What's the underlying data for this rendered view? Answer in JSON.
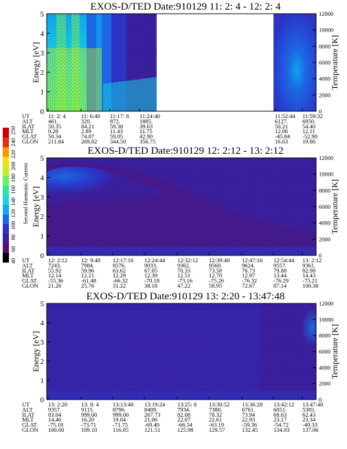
{
  "colorbar": {
    "label": "Second Harmonic Current",
    "ticks": [
      "40",
      "60",
      "80",
      "100",
      "120",
      "140",
      "160",
      "180",
      "200",
      "220",
      "240",
      "250"
    ],
    "colors": [
      "#000000",
      "#5a0f6e",
      "#3a1f9c",
      "#2a35c8",
      "#1a6ae6",
      "#10a8f0",
      "#16d6e0",
      "#28e8a0",
      "#6ef05a",
      "#bff020",
      "#f5e000",
      "#f59a00",
      "#e83010",
      "#cc0000"
    ]
  },
  "chart_data": [
    {
      "type": "heatmap",
      "title": "EXOS-D/TED   Date:910129   11: 2: 4 - 12: 2: 4",
      "ylabel": "Energy [eV]",
      "y2label": "Temperature [K]",
      "ylim": [
        0,
        5
      ],
      "y2lim": [
        0,
        12000
      ],
      "yticks": [
        "0",
        "1",
        "2",
        "3",
        "4",
        "5"
      ],
      "y2ticks": [
        "0",
        "2000",
        "4000",
        "6000",
        "8000",
        "10000",
        "12000"
      ],
      "data_gap": {
        "from": "11:24:40",
        "to": "11:52:44"
      },
      "intensity_note": "High intensity (yellow-green) at all energies near 11:6-11:18, blue-cyan elsewhere",
      "ephemeris": {
        "row_labels": [
          "UT",
          "ALT",
          "ILAT",
          "MLT",
          "GLAT",
          "GLON"
        ],
        "columns": [
          [
            "11: 2: 4",
            "461.",
            "50.35",
            "0.28",
            "50.34",
            "211.84"
          ],
          [
            "11: 6:40",
            "320.",
            "84.21",
            "2.89",
            "74.87",
            "269.82"
          ],
          [
            "11:17: 8",
            "872.",
            "59.38",
            "11.43",
            "59.05",
            "344.50"
          ],
          [
            "11:24:40",
            "1885.",
            "39.63",
            "11.75",
            "42.90",
            "356.75"
          ],
          [
            "11:52:44",
            "6127.",
            "50.21",
            "12.06",
            "-45.84",
            "16.63"
          ],
          [
            "11:59:32",
            "6950.",
            "54.40",
            "12.11",
            "-52.90",
            "19.86"
          ]
        ]
      }
    },
    {
      "type": "heatmap",
      "title": "EXOS-D/TED   Date:910129   12: 2:12 - 13: 2:12",
      "ylabel": "Energy [eV]",
      "y2label": "Temperature [K]",
      "ylim": [
        0,
        5
      ],
      "y2lim": [
        0,
        12000
      ],
      "yticks": [
        "0",
        "1",
        "2",
        "3",
        "4",
        "5"
      ],
      "y2ticks": [
        "0",
        "2000",
        "4000",
        "6000",
        "8000",
        "10000",
        "12000"
      ],
      "intensity_note": "Mostly low intensity (purple); blue enhancement at 3-4.5 eV early in the interval",
      "ephemeris": {
        "row_labels": [
          "UT",
          "ALT",
          "ILAT",
          "MLT",
          "GLAT",
          "GLON"
        ],
        "columns": [
          [
            "12: 2:12",
            "7243.",
            "55.92",
            "12.14",
            "-55.36",
            "21.26"
          ],
          [
            "12: 9:48",
            "7984.",
            "59.96",
            "12.21",
            "-61.48",
            "25.76"
          ],
          [
            "12:17:16",
            "8576.",
            "63.62",
            "12.29",
            "-66.32",
            "31.22"
          ],
          [
            "12:24:44",
            "9033.",
            "67.05",
            "12.39",
            "-70.18",
            "38.18"
          ],
          [
            "12:32:12",
            "9362.",
            "70.33",
            "12.51",
            "-73.16",
            "47.22"
          ],
          [
            "12:39:48",
            "9560.",
            "73.58",
            "12.70",
            "-75.26",
            "58.95"
          ],
          [
            "12:47:16",
            "9624.",
            "76.73",
            "12.97",
            "-76.32",
            "72.67"
          ],
          [
            "12:54:44",
            "9557.",
            "79.88",
            "13.44",
            "-76.29",
            "87.14"
          ],
          [
            "13: 2:12",
            "9361.",
            "82.98",
            "14.43",
            "-75.21",
            "100.38"
          ]
        ]
      }
    },
    {
      "type": "heatmap",
      "title": "EXOS-D/TED   Date:910129   13: 2:20 - 13:47:48",
      "ylabel": "Energy [eV]",
      "y2label": "Temperature [K]",
      "ylim": [
        0,
        5
      ],
      "y2lim": [
        0,
        12000
      ],
      "yticks": [
        "0",
        "1",
        "2",
        "3",
        "4",
        "5"
      ],
      "y2ticks": [
        "0",
        "2000",
        "4000",
        "6000",
        "8000",
        "10000",
        "12000"
      ],
      "intensity_note": "Low intensity (purple) throughout; faint blue near 13:42-13:47 at 3.5-4.8 eV",
      "ephemeris": {
        "row_labels": [
          "UT",
          "ALT",
          "ILAT",
          "MLT",
          "GLAT",
          "GLON"
        ],
        "columns": [
          [
            "13: 2:20",
            "9357.",
            "83.04",
            "14.46",
            "-75.18",
            "100.60"
          ],
          [
            "13: 8: 4",
            "9115.",
            "999.00",
            "16.20",
            "-73.71",
            "109.10"
          ],
          [
            "13:13:48",
            "8796.",
            "999.00",
            "19.04",
            "-71.75",
            "116.05"
          ],
          [
            "13:19:24",
            "8409.",
            "267.73",
            "21.06",
            "-69.40",
            "121.51"
          ],
          [
            "13:25: 8",
            "7934.",
            "82.08",
            "22.07",
            "-66.54",
            "125.98"
          ],
          [
            "13:30:52",
            "7380.",
            "78.32",
            "22.61",
            "-63.19",
            "129.57"
          ],
          [
            "13:36:28",
            "6761.",
            "73.94",
            "22.93",
            "-59.36",
            "132.45"
          ],
          [
            "13:42:12",
            "6051.",
            "68.63",
            "23.17",
            "-54.72",
            "134.93"
          ],
          [
            "13:47:48",
            "5385.",
            "62.43",
            "23.34",
            "-49.33",
            "137.06"
          ]
        ]
      }
    }
  ]
}
